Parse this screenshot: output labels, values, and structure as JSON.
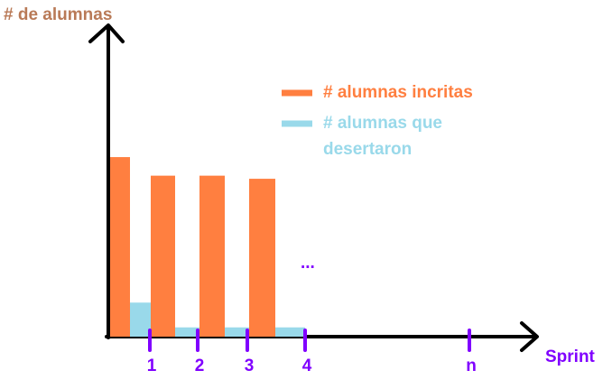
{
  "chart_data": {
    "type": "bar",
    "y_label": "# de alumnas",
    "x_label": "Sprint",
    "categories": [
      "1",
      "2",
      "3",
      "4",
      "n"
    ],
    "series": [
      {
        "name": "# alumnas incritas",
        "color": "#ff7f40",
        "values": [
          58,
          52,
          52,
          51,
          null
        ]
      },
      {
        "name": "# alumnas que desertaron",
        "color": "#99d9ea",
        "values": [
          11,
          3,
          3,
          3,
          null
        ]
      }
    ],
    "ylim": [
      0,
      100
    ],
    "annotation": "...",
    "axis_label_colors": {
      "y": "#b97a57",
      "x": "#8000ff"
    }
  }
}
